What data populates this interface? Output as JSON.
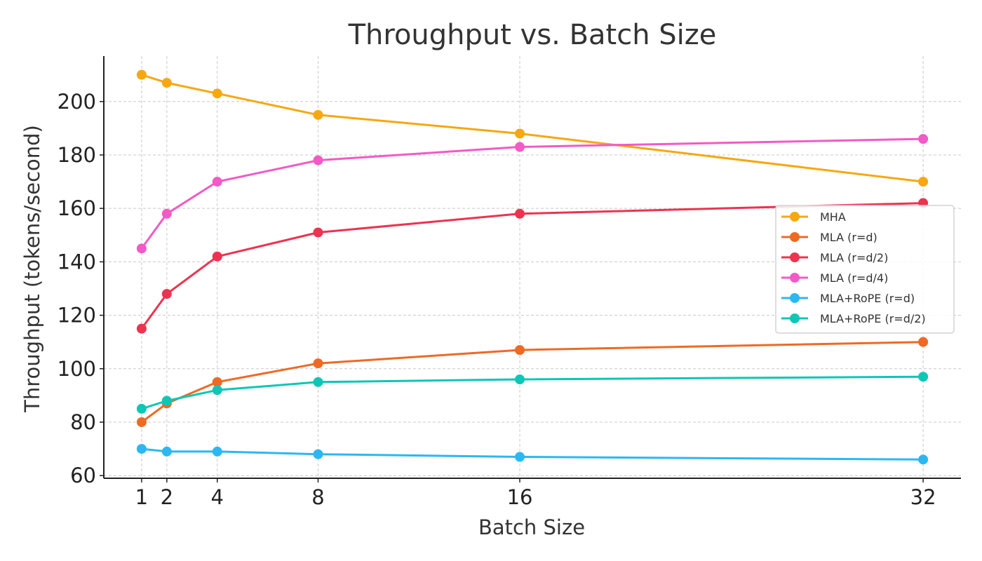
{
  "chart_data": {
    "type": "line",
    "title": "Throughput vs. Batch Size",
    "xlabel": "Batch Size",
    "ylabel": "Throughput (tokens/second)",
    "x": [
      1,
      2,
      4,
      8,
      16,
      32
    ],
    "x_ticks": [
      1,
      2,
      4,
      8,
      16,
      32
    ],
    "y_ticks": [
      60,
      80,
      100,
      120,
      140,
      160,
      180,
      200
    ],
    "xlim": [
      -0.5,
      33.5
    ],
    "ylim": [
      59,
      217
    ],
    "grid": true,
    "legend_position": "center-right",
    "series": [
      {
        "name": "MHA",
        "color": "#F5A80F",
        "values": [
          210,
          207,
          203,
          195,
          188,
          170
        ]
      },
      {
        "name": "MLA (r=d)",
        "color": "#EE6A24",
        "values": [
          80,
          87,
          95,
          102,
          107,
          110
        ]
      },
      {
        "name": "MLA (r=d/2)",
        "color": "#EC3350",
        "values": [
          115,
          128,
          142,
          151,
          158,
          162
        ]
      },
      {
        "name": "MLA (r=d/4)",
        "color": "#F25AC6",
        "values": [
          145,
          158,
          170,
          178,
          183,
          186
        ]
      },
      {
        "name": "MLA+RoPE (r=d)",
        "color": "#2BB8F2",
        "values": [
          70,
          69,
          69,
          68,
          67,
          66
        ]
      },
      {
        "name": "MLA+RoPE (r=d/2)",
        "color": "#0CC7B5",
        "values": [
          85,
          88,
          92,
          95,
          96,
          97
        ]
      }
    ]
  }
}
